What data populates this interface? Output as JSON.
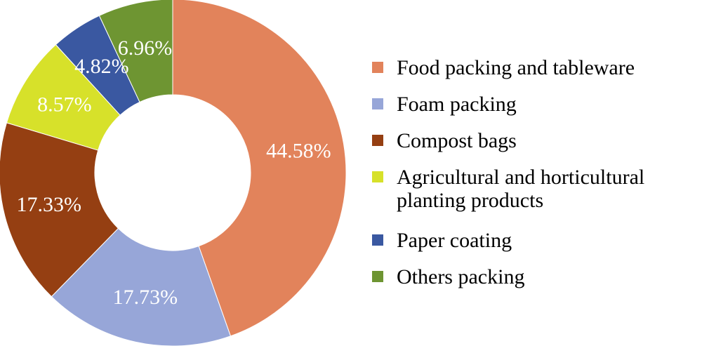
{
  "chart_data": {
    "type": "pie",
    "style": "donut",
    "legend_position": "right",
    "slices": [
      {
        "label": "Food packing and tableware",
        "legend_lines": [
          "Food packing and tableware"
        ],
        "value": 44.58,
        "display": "44.58%",
        "color": "#E2835B"
      },
      {
        "label": "Foam packing",
        "legend_lines": [
          "Foam packing"
        ],
        "value": 17.73,
        "display": "17.73%",
        "color": "#97A6D8"
      },
      {
        "label": "Compost bags",
        "legend_lines": [
          "Compost bags"
        ],
        "value": 17.33,
        "display": "17.33%",
        "color": "#953F12"
      },
      {
        "label": "Agricultural and horticultural planting products",
        "legend_lines": [
          "Agricultural and horticultural",
          "planting products"
        ],
        "value": 8.57,
        "display": "8.57%",
        "color": "#D7E12A"
      },
      {
        "label": "Paper coating",
        "legend_lines": [
          "Paper coating"
        ],
        "value": 4.82,
        "display": "4.82%",
        "color": "#3A58A1"
      },
      {
        "label": "Others packing",
        "legend_lines": [
          "Others packing"
        ],
        "value": 6.96,
        "display": "6.96%",
        "color": "#6E9532"
      }
    ]
  }
}
